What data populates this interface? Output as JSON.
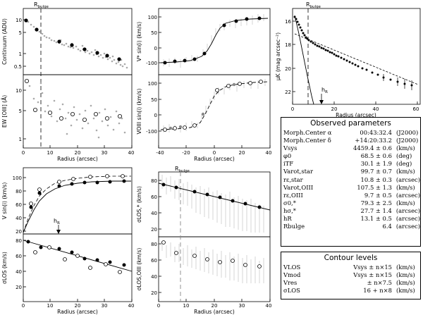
{
  "figure": {
    "p1": {
      "ylabel_top": "Continuum (ADU)",
      "ylabel_bottom": "EW [OIII] (Å)",
      "xlabel": "Radius (arcsec)",
      "bulge_label": "R",
      "bulge_sub": "bulge",
      "yticks_top": [
        "10",
        "5",
        "1",
        "0.5"
      ],
      "yticks_bottom": [
        "10",
        "5",
        "1"
      ],
      "xticks": [
        "0",
        "10",
        "20",
        "30",
        "40"
      ]
    },
    "p2": {
      "ylabel_top": "V* sin(i) (km/s)",
      "ylabel_bottom": "VOIII sin(i) (km/s)",
      "xlabel": "Radius (arcsec)",
      "yticks": [
        "100",
        "50",
        "0",
        "-50",
        "-100"
      ],
      "xticks": [
        "-40",
        "-20",
        "0",
        "20",
        "40"
      ]
    },
    "p3": {
      "ylabel": "μK (mag arcsec⁻²)",
      "xlabel": "Radius (arcsec)",
      "bulge_label": "R",
      "bulge_sub": "bulge",
      "hr_label": "h",
      "hr_sub": "R",
      "yticks": [
        "16",
        "18",
        "20",
        "22"
      ],
      "xticks": [
        "0",
        "20",
        "40",
        "60"
      ]
    },
    "p4": {
      "ylabel_top": "V sin(i) (km/s)",
      "ylabel_bottom": "σLOS (km/s)",
      "xlabel": "Radius (arcsec)",
      "hr_label": "h",
      "hr_sub": "R",
      "yticks_top": [
        "100",
        "80",
        "60",
        "40",
        "20"
      ],
      "yticks_bottom": [
        "80",
        "60",
        "40",
        "20"
      ],
      "xticks": [
        "0",
        "10",
        "20",
        "30",
        "40"
      ]
    },
    "p5": {
      "ylabel_top": "σLOS,* (km/s)",
      "ylabel_bottom": "σLOS,OIII (km/s)",
      "xlabel": "Radius (arcsec)",
      "bulge_label": "R",
      "bulge_sub": "bulge",
      "yticks_top": [
        "80",
        "60",
        "40",
        "20"
      ],
      "yticks_bottom": [
        "80",
        "60",
        "40",
        "20"
      ],
      "xticks": [
        "0",
        "10",
        "20",
        "30",
        "40"
      ]
    }
  },
  "observed": {
    "title": "Observed parameters",
    "rows": [
      {
        "name": "Morph.Center α",
        "value": "00:43:32.4",
        "unit": "(J2000)"
      },
      {
        "name": "Morph.Center δ",
        "value": "+14:20:33.2",
        "unit": "(J2000)"
      },
      {
        "name": "Vsys",
        "value": "4459.4 ± 0.6",
        "unit": "(km/s)"
      },
      {
        "name": "φ0",
        "value": "68.5 ± 0.6",
        "unit": "(deg)"
      },
      {
        "name": "iTF",
        "value": "30.1 ± 1.9",
        "unit": "(deg)"
      },
      {
        "name": "Varot,star",
        "value": "99.7 ± 0.7",
        "unit": "(km/s)"
      },
      {
        "name": "rε,star",
        "value": "10.8 ± 0.3",
        "unit": "(arcsec)"
      },
      {
        "name": "Varot,OIII",
        "value": "107.5 ± 1.3",
        "unit": "(km/s)"
      },
      {
        "name": "rε,OIII",
        "value": "9.7 ± 0.5",
        "unit": "(arcsec)"
      },
      {
        "name": "σ0,*",
        "value": "79.3 ± 2.5",
        "unit": "(km/s)"
      },
      {
        "name": "hσ,*",
        "value": "27.7 ± 1.4",
        "unit": "(arcsec)"
      },
      {
        "name": "hR",
        "value": "13.1 ± 0.5",
        "unit": "(arcsec)"
      },
      {
        "name": "Rbulge",
        "value": "6.4",
        "unit": "(arcsec)"
      }
    ]
  },
  "contour": {
    "title": "Contour levels",
    "rows": [
      {
        "name": "VLOS",
        "value": "Vsys ± n×15",
        "unit": "(km/s)"
      },
      {
        "name": "Vmod",
        "value": "Vsys ± n×15",
        "unit": "(km/s)"
      },
      {
        "name": "Vres",
        "value": "± n×7.5",
        "unit": "(km/s)"
      },
      {
        "name": "σLOS",
        "value": "16 + n×8",
        "unit": "(km/s)"
      }
    ]
  }
}
